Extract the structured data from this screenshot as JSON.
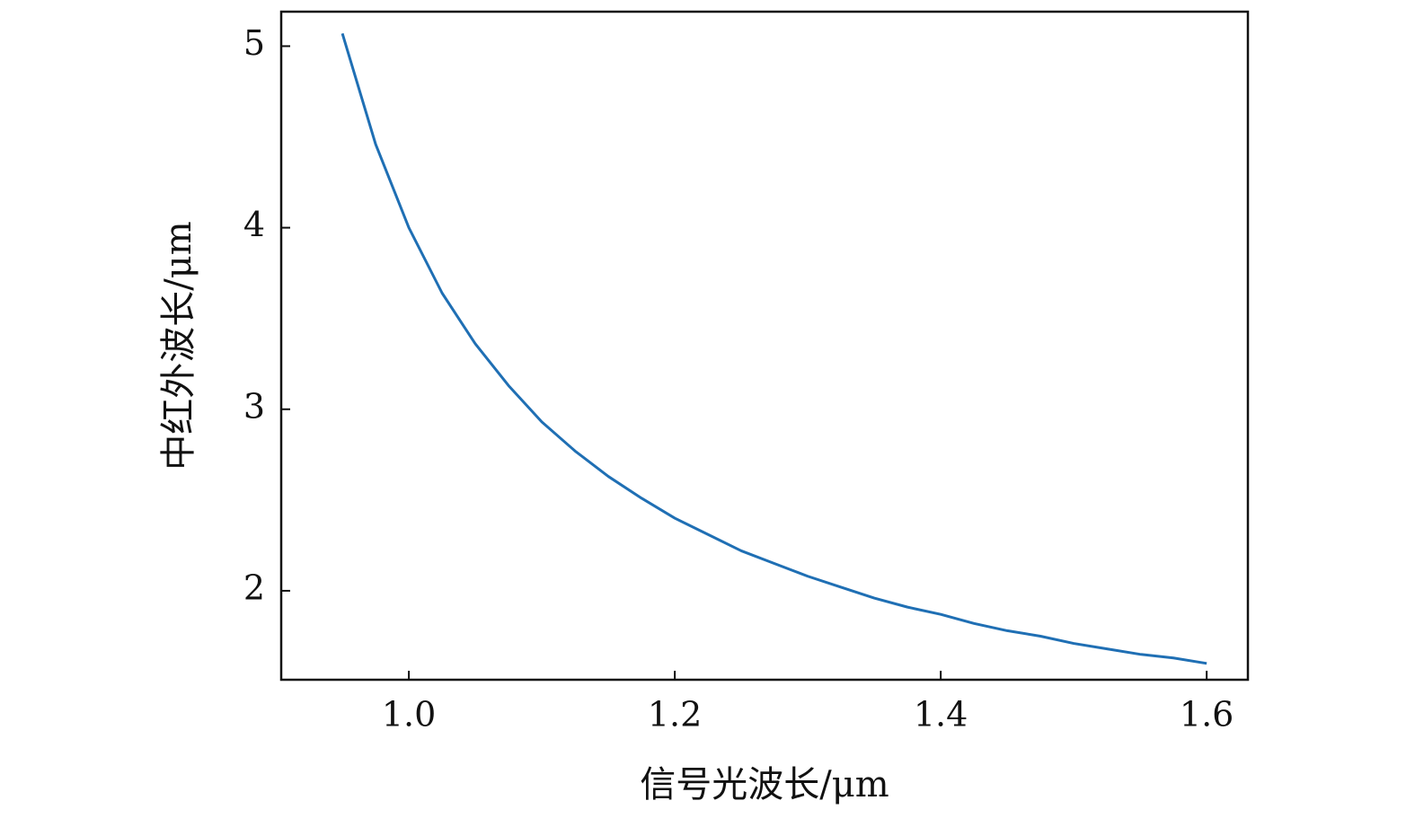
{
  "chart_data": {
    "type": "line",
    "xlabel": "信号光波长/μm",
    "ylabel": "中红外波长/μm",
    "x": [
      0.95,
      0.975,
      1.0,
      1.025,
      1.05,
      1.075,
      1.1,
      1.125,
      1.15,
      1.175,
      1.2,
      1.225,
      1.25,
      1.275,
      1.3,
      1.325,
      1.35,
      1.375,
      1.4,
      1.425,
      1.45,
      1.475,
      1.5,
      1.525,
      1.55,
      1.575,
      1.6
    ],
    "series": [
      {
        "color": "#1f6fb4",
        "values": [
          5.07,
          4.46,
          4.0,
          3.64,
          3.36,
          3.13,
          2.93,
          2.77,
          2.63,
          2.51,
          2.4,
          2.31,
          2.22,
          2.15,
          2.08,
          2.02,
          1.96,
          1.91,
          1.87,
          1.82,
          1.78,
          1.75,
          1.71,
          1.68,
          1.65,
          1.63,
          1.6
        ]
      }
    ],
    "xlim": [
      0.904,
      1.631
    ],
    "ylim": [
      1.51,
      5.19
    ],
    "xticks": [
      {
        "value": 1,
        "label": "1.0"
      },
      1.2,
      1.4,
      1.6
    ],
    "yticks": [
      2,
      3,
      4,
      5
    ],
    "grid": false
  }
}
